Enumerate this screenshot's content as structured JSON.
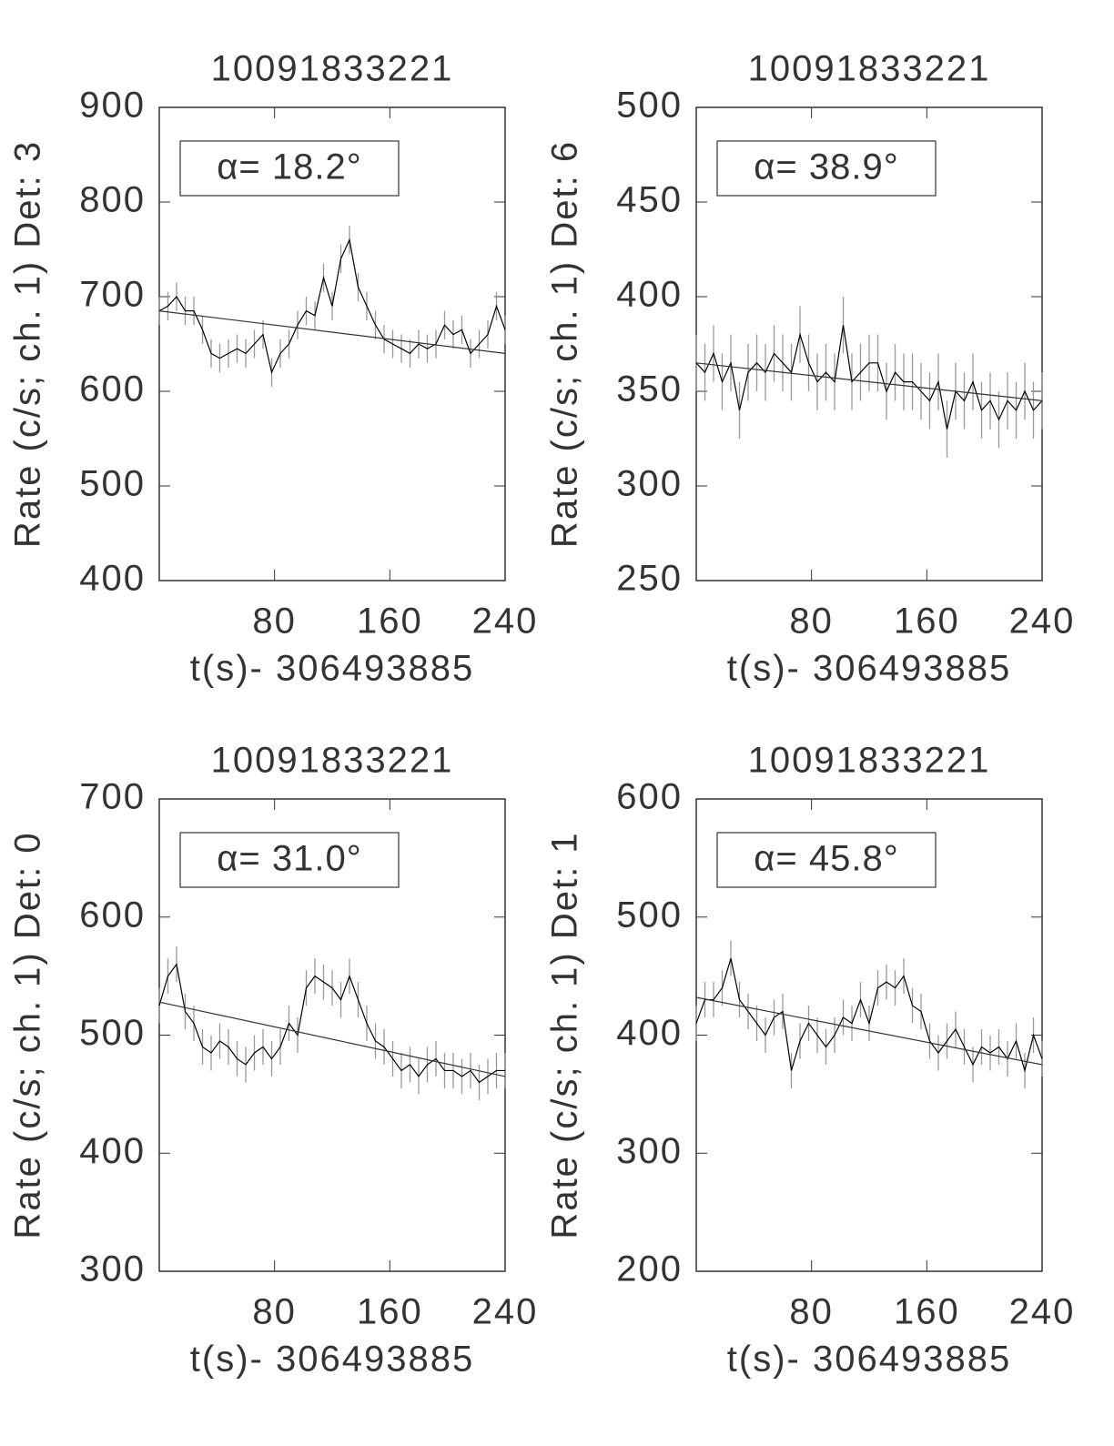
{
  "chart_data": [
    {
      "type": "line",
      "title": "10091833221",
      "ylabel": "Rate (c/s; ch. 1) Det: 3",
      "xlabel": "t(s)- 306493885",
      "annotation": "α= 18.2°",
      "x": [
        0,
        6,
        12,
        18,
        24,
        30,
        36,
        42,
        48,
        54,
        60,
        66,
        72,
        78,
        84,
        90,
        96,
        102,
        108,
        114,
        120,
        126,
        132,
        138,
        144,
        150,
        156,
        162,
        168,
        174,
        180,
        186,
        192,
        198,
        204,
        210,
        216,
        222,
        228,
        234,
        240
      ],
      "series": [
        {
          "color": "#000000",
          "error": 15,
          "values": [
            685,
            690,
            700,
            685,
            685,
            665,
            640,
            635,
            640,
            645,
            640,
            650,
            660,
            620,
            640,
            650,
            670,
            685,
            680,
            720,
            690,
            740,
            760,
            710,
            690,
            670,
            655,
            650,
            645,
            640,
            650,
            645,
            650,
            670,
            660,
            665,
            640,
            650,
            660,
            690,
            665
          ]
        },
        {
          "color": "#333333",
          "x": [
            0,
            240
          ],
          "values": [
            685,
            640
          ]
        }
      ],
      "xlim": [
        0,
        240
      ],
      "ylim": [
        400,
        900
      ],
      "xticks": [
        80,
        160,
        240
      ],
      "yticks": [
        400,
        500,
        600,
        700,
        800,
        900
      ]
    },
    {
      "type": "line",
      "title": "10091833221",
      "ylabel": "Rate (c/s; ch. 1) Det: 6",
      "xlabel": "t(s)- 306493885",
      "annotation": "α= 38.9°",
      "x": [
        0,
        6,
        12,
        18,
        24,
        30,
        36,
        42,
        48,
        54,
        60,
        66,
        72,
        78,
        84,
        90,
        96,
        102,
        108,
        114,
        120,
        126,
        132,
        138,
        144,
        150,
        156,
        162,
        168,
        174,
        180,
        186,
        192,
        198,
        204,
        210,
        216,
        222,
        228,
        234,
        240
      ],
      "series": [
        {
          "color": "#000000",
          "error": 15,
          "values": [
            365,
            360,
            370,
            355,
            365,
            340,
            360,
            365,
            360,
            370,
            365,
            360,
            380,
            365,
            355,
            360,
            355,
            385,
            355,
            360,
            365,
            365,
            350,
            360,
            355,
            355,
            350,
            345,
            355,
            330,
            350,
            345,
            355,
            340,
            345,
            335,
            345,
            340,
            350,
            340,
            345
          ]
        },
        {
          "color": "#333333",
          "x": [
            0,
            240
          ],
          "values": [
            365,
            345
          ]
        }
      ],
      "xlim": [
        0,
        240
      ],
      "ylim": [
        250,
        500
      ],
      "xticks": [
        80,
        160,
        240
      ],
      "yticks": [
        250,
        300,
        350,
        400,
        450,
        500
      ]
    },
    {
      "type": "line",
      "title": "10091833221",
      "ylabel": "Rate (c/s; ch. 1) Det: 0",
      "xlabel": "t(s)- 306493885",
      "annotation": "α= 31.0°",
      "x": [
        0,
        6,
        12,
        18,
        24,
        30,
        36,
        42,
        48,
        54,
        60,
        66,
        72,
        78,
        84,
        90,
        96,
        102,
        108,
        114,
        120,
        126,
        132,
        138,
        144,
        150,
        156,
        162,
        168,
        174,
        180,
        186,
        192,
        198,
        204,
        210,
        216,
        222,
        228,
        234,
        240
      ],
      "series": [
        {
          "color": "#000000",
          "error": 15,
          "values": [
            525,
            550,
            560,
            520,
            510,
            490,
            485,
            495,
            490,
            480,
            475,
            485,
            490,
            480,
            490,
            510,
            500,
            540,
            550,
            545,
            540,
            530,
            550,
            530,
            510,
            495,
            490,
            480,
            470,
            475,
            465,
            475,
            480,
            470,
            470,
            465,
            470,
            460,
            465,
            470,
            470
          ]
        },
        {
          "color": "#333333",
          "x": [
            0,
            240
          ],
          "values": [
            528,
            465
          ]
        }
      ],
      "xlim": [
        0,
        240
      ],
      "ylim": [
        300,
        700
      ],
      "xticks": [
        80,
        160,
        240
      ],
      "yticks": [
        300,
        400,
        500,
        600,
        700
      ]
    },
    {
      "type": "line",
      "title": "10091833221",
      "ylabel": "Rate (c/s; ch. 1) Det: 1",
      "xlabel": "t(s)- 306493885",
      "annotation": "α= 45.8°",
      "x": [
        0,
        6,
        12,
        18,
        24,
        30,
        36,
        42,
        48,
        54,
        60,
        66,
        72,
        78,
        84,
        90,
        96,
        102,
        108,
        114,
        120,
        126,
        132,
        138,
        144,
        150,
        156,
        162,
        168,
        174,
        180,
        186,
        192,
        198,
        204,
        210,
        216,
        222,
        228,
        234,
        240
      ],
      "series": [
        {
          "color": "#000000",
          "error": 15,
          "values": [
            410,
            430,
            430,
            440,
            465,
            430,
            420,
            410,
            400,
            415,
            420,
            370,
            395,
            410,
            400,
            390,
            400,
            415,
            410,
            430,
            410,
            440,
            445,
            440,
            450,
            425,
            420,
            395,
            385,
            395,
            405,
            390,
            375,
            390,
            385,
            390,
            380,
            395,
            370,
            400,
            380
          ]
        },
        {
          "color": "#333333",
          "x": [
            0,
            240
          ],
          "values": [
            432,
            375
          ]
        }
      ],
      "xlim": [
        0,
        240
      ],
      "ylim": [
        200,
        600
      ],
      "xticks": [
        80,
        160,
        240
      ],
      "yticks": [
        200,
        300,
        400,
        500,
        600
      ]
    }
  ]
}
